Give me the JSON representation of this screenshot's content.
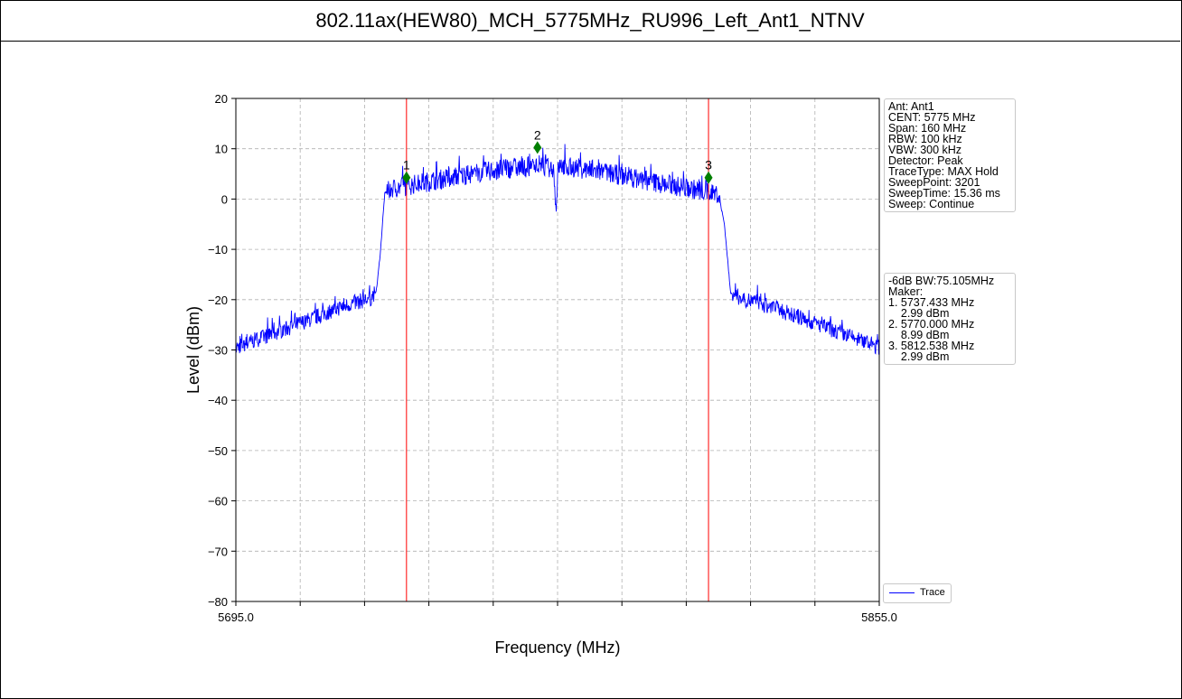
{
  "chart_data": {
    "type": "line",
    "title": "802.11ax(HEW80)_MCH_5775MHz_RU996_Left_Ant1_NTNV",
    "xlabel": "Frequency (MHz)",
    "ylabel": "Level (dBm)",
    "xlim": [
      5695.0,
      5855.0
    ],
    "ylim": [
      -80,
      20
    ],
    "x_tick_labels": [
      "5695.0",
      "5855.0"
    ],
    "x_minor_ticks": [
      5695,
      5711,
      5727,
      5743,
      5759,
      5775,
      5791,
      5807,
      5823,
      5839,
      5855
    ],
    "y_ticks": [
      20,
      10,
      0,
      -10,
      -20,
      -30,
      -40,
      -50,
      -60,
      -70,
      -80
    ],
    "y_tick_labels": [
      "20",
      "10",
      "0",
      "−10",
      "−20",
      "−30",
      "−40",
      "−50",
      "−60",
      "−70",
      "−80"
    ],
    "grid": true,
    "series": [
      {
        "name": "Trace",
        "color": "#0000ff",
        "envelope": [
          [
            5695.0,
            -29.5
          ],
          [
            5700.0,
            -28.0
          ],
          [
            5705.0,
            -26.5
          ],
          [
            5710.0,
            -25.0
          ],
          [
            5715.0,
            -23.5
          ],
          [
            5720.0,
            -21.8
          ],
          [
            5725.0,
            -20.5
          ],
          [
            5728.5,
            -19.8
          ],
          [
            5730.0,
            -18.0
          ],
          [
            5731.0,
            -10.0
          ],
          [
            5732.0,
            1.0
          ],
          [
            5733.5,
            2.0
          ],
          [
            5740.0,
            3.0
          ],
          [
            5745.0,
            3.8
          ],
          [
            5750.0,
            4.5
          ],
          [
            5755.0,
            5.2
          ],
          [
            5760.0,
            5.8
          ],
          [
            5765.0,
            6.2
          ],
          [
            5770.0,
            6.5
          ],
          [
            5774.0,
            6.2
          ],
          [
            5774.6,
            -2.0
          ],
          [
            5775.2,
            6.5
          ],
          [
            5780.0,
            6.2
          ],
          [
            5785.0,
            5.5
          ],
          [
            5790.0,
            4.8
          ],
          [
            5795.0,
            4.0
          ],
          [
            5800.0,
            3.2
          ],
          [
            5805.0,
            2.5
          ],
          [
            5810.0,
            1.8
          ],
          [
            5815.0,
            1.0
          ],
          [
            5816.5,
            -5.0
          ],
          [
            5818.0,
            -18.5
          ],
          [
            5820.0,
            -19.5
          ],
          [
            5825.0,
            -20.8
          ],
          [
            5830.0,
            -22.0
          ],
          [
            5835.0,
            -23.5
          ],
          [
            5840.0,
            -25.0
          ],
          [
            5845.0,
            -26.5
          ],
          [
            5850.0,
            -28.0
          ],
          [
            5855.0,
            -29.5
          ]
        ]
      }
    ],
    "vertical_lines": [
      {
        "x": 5737.433,
        "color": "#ff0000"
      },
      {
        "x": 5812.538,
        "color": "#ff0000"
      }
    ],
    "markers": [
      {
        "label": "1",
        "x": 5737.433,
        "y": 2.99,
        "color": "#007f00"
      },
      {
        "label": "2",
        "x": 5770.0,
        "y": 8.99,
        "color": "#007f00"
      },
      {
        "label": "3",
        "x": 5812.538,
        "y": 2.99,
        "color": "#007f00"
      }
    ],
    "legend": {
      "label": "Trace",
      "placement": "bottom-right-outside"
    },
    "info_box_1": [
      "Ant: Ant1",
      "CENT: 5775 MHz",
      "Span: 160 MHz",
      "RBW: 100 kHz",
      "VBW: 300 kHz",
      "Detector: Peak",
      "TraceType: MAX Hold",
      "SweepPoint: 3201",
      "SweepTime: 15.36 ms",
      "Sweep: Continue"
    ],
    "info_box_2": [
      "-6dB BW:75.105MHz",
      "Maker:",
      "1. 5737.433 MHz",
      "    2.99 dBm",
      "2. 5770.000 MHz",
      "    8.99 dBm",
      "3. 5812.538 MHz",
      "    2.99 dBm"
    ]
  }
}
